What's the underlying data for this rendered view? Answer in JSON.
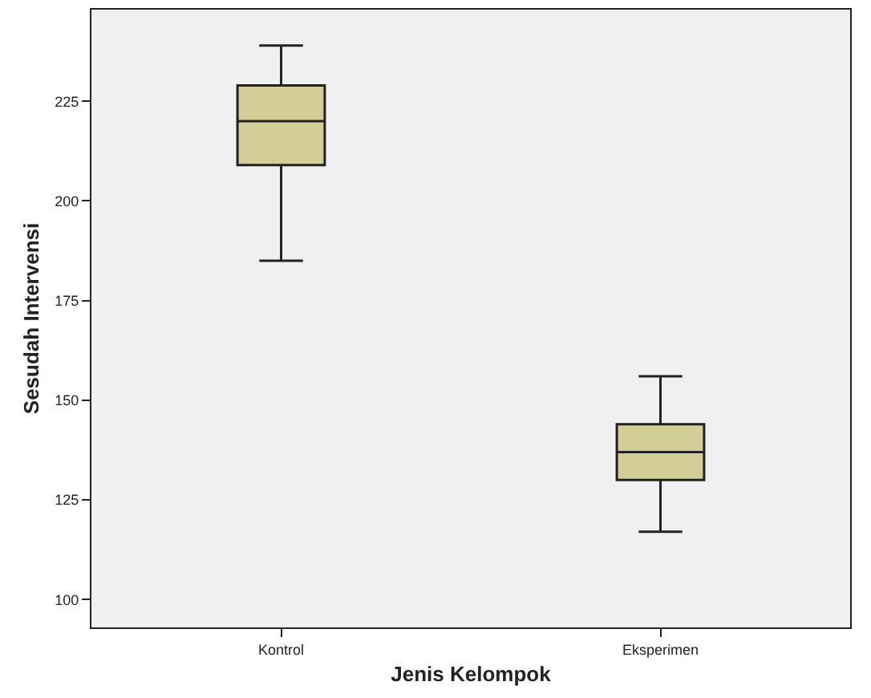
{
  "chart_data": {
    "type": "box",
    "xlabel": "Jenis Kelompok",
    "ylabel": "Sesudah Intervensi",
    "categories": [
      "Kontrol",
      "Eksperimen"
    ],
    "series": [
      {
        "color": "#d3ce97",
        "boxes": [
          {
            "low": 185,
            "q1": 209,
            "median": 220,
            "q3": 229,
            "high": 239
          },
          {
            "low": 117,
            "q1": 130,
            "median": 137,
            "q3": 144,
            "high": 156
          }
        ]
      }
    ],
    "ylim": [
      93,
      248
    ],
    "yticks": [
      100,
      125,
      150,
      175,
      200,
      225
    ],
    "grid": false,
    "legend": false
  }
}
